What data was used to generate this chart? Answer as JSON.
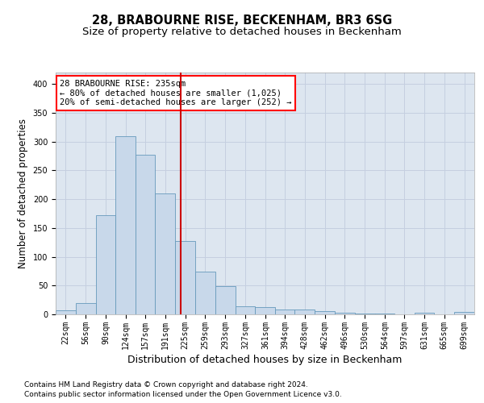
{
  "title": "28, BRABOURNE RISE, BECKENHAM, BR3 6SG",
  "subtitle": "Size of property relative to detached houses in Beckenham",
  "xlabel": "Distribution of detached houses by size in Beckenham",
  "ylabel": "Number of detached properties",
  "footnote1": "Contains HM Land Registry data © Crown copyright and database right 2024.",
  "footnote2": "Contains public sector information licensed under the Open Government Licence v3.0.",
  "bar_color": "#c8d8ea",
  "bar_edgecolor": "#6699bb",
  "grid_color": "#c5cfe0",
  "bg_color": "#dde6f0",
  "vline_color": "#cc0000",
  "vline_x": 235,
  "annotation_text": "28 BRABOURNE RISE: 235sqm\n← 80% of detached houses are smaller (1,025)\n20% of semi-detached houses are larger (252) →",
  "bins": [
    22,
    56,
    90,
    124,
    157,
    191,
    225,
    259,
    293,
    327,
    361,
    394,
    428,
    462,
    496,
    530,
    564,
    597,
    631,
    665,
    699
  ],
  "counts": [
    7,
    20,
    172,
    310,
    277,
    210,
    128,
    74,
    49,
    14,
    12,
    8,
    8,
    5,
    3,
    1,
    1,
    0,
    3,
    0,
    4
  ],
  "ylim": [
    0,
    420
  ],
  "yticks": [
    0,
    50,
    100,
    150,
    200,
    250,
    300,
    350,
    400
  ],
  "title_fontsize": 10.5,
  "subtitle_fontsize": 9.5,
  "xlabel_fontsize": 9,
  "ylabel_fontsize": 8.5,
  "tick_fontsize": 7,
  "annot_fontsize": 7.5,
  "footnote_fontsize": 6.5
}
